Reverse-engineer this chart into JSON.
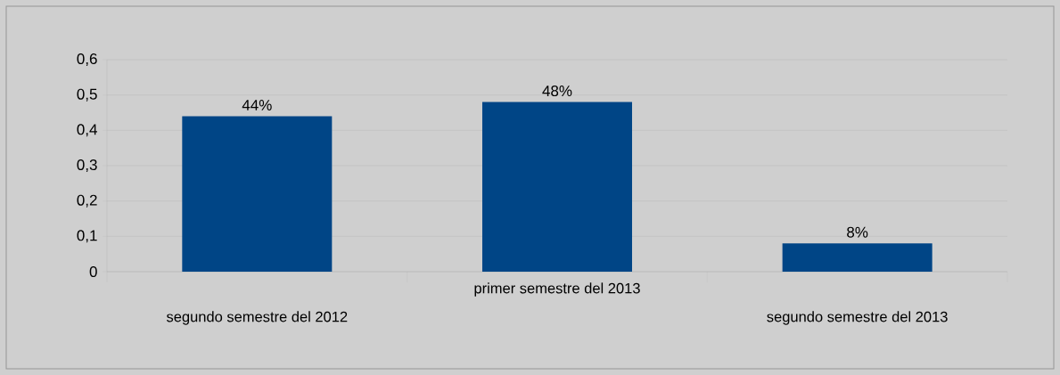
{
  "chart_data": {
    "type": "bar",
    "categories": [
      "segundo semestre del 2012",
      "primer semestre del 2013",
      "segundo semestre del 2013"
    ],
    "values": [
      0.44,
      0.48,
      0.08
    ],
    "value_labels": [
      "44%",
      "48%",
      "8%"
    ],
    "color": "#004586",
    "ylim": [
      0,
      0.6
    ],
    "yticks": [
      0,
      {
        "value": 0.1,
        "label": "0,1"
      },
      {
        "value": 0.2,
        "label": "0,2"
      },
      {
        "value": 0.3,
        "label": "0,3"
      },
      {
        "value": 0.4,
        "label": "0,4"
      },
      {
        "value": 0.5,
        "label": "0,5"
      },
      {
        "value": 0.6,
        "label": "0,6"
      }
    ],
    "grid": "y"
  }
}
